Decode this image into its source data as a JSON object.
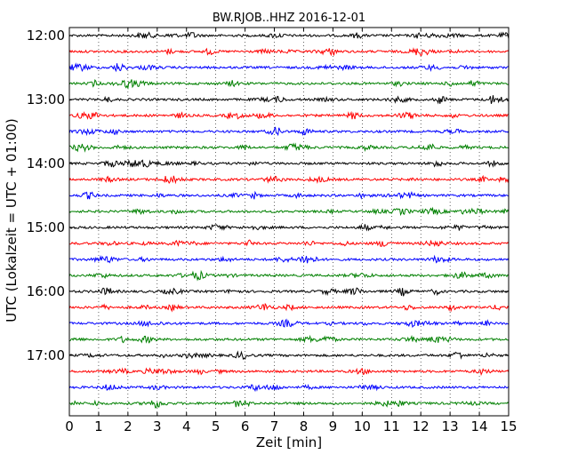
{
  "chart_data": {
    "type": "line",
    "title": "BW.RJOB..HHZ 2016-12-01",
    "xlabel": "Zeit  [min]",
    "ylabel": "UTC (Lokalzeit = UTC + 01:00)",
    "xlim": [
      0,
      15
    ],
    "xticks": [
      0,
      1,
      2,
      3,
      4,
      5,
      6,
      7,
      8,
      9,
      10,
      11,
      12,
      13,
      14,
      15
    ],
    "ytick_labels": [
      "12:00",
      "13:00",
      "14:00",
      "15:00",
      "16:00",
      "17:00"
    ],
    "grid": "vertical dotted",
    "trace_interval_min": 15,
    "start_time": "12:00",
    "colors": [
      "#000000",
      "#ff0000",
      "#0000ff",
      "#008000"
    ],
    "traces": [
      {
        "start": "12:00",
        "color": "#000000"
      },
      {
        "start": "12:15",
        "color": "#ff0000"
      },
      {
        "start": "12:30",
        "color": "#0000ff"
      },
      {
        "start": "12:45",
        "color": "#008000"
      },
      {
        "start": "13:00",
        "color": "#000000"
      },
      {
        "start": "13:15",
        "color": "#ff0000"
      },
      {
        "start": "13:30",
        "color": "#0000ff"
      },
      {
        "start": "13:45",
        "color": "#008000"
      },
      {
        "start": "14:00",
        "color": "#000000"
      },
      {
        "start": "14:15",
        "color": "#ff0000"
      },
      {
        "start": "14:30",
        "color": "#0000ff"
      },
      {
        "start": "14:45",
        "color": "#008000"
      },
      {
        "start": "15:00",
        "color": "#000000"
      },
      {
        "start": "15:15",
        "color": "#ff0000"
      },
      {
        "start": "15:30",
        "color": "#0000ff"
      },
      {
        "start": "15:45",
        "color": "#008000"
      },
      {
        "start": "16:00",
        "color": "#000000"
      },
      {
        "start": "16:15",
        "color": "#ff0000"
      },
      {
        "start": "16:30",
        "color": "#0000ff"
      },
      {
        "start": "16:45",
        "color": "#008000"
      },
      {
        "start": "17:00",
        "color": "#000000"
      },
      {
        "start": "17:15",
        "color": "#ff0000"
      },
      {
        "start": "17:30",
        "color": "#0000ff"
      },
      {
        "start": "17:45",
        "color": "#008000"
      }
    ]
  }
}
